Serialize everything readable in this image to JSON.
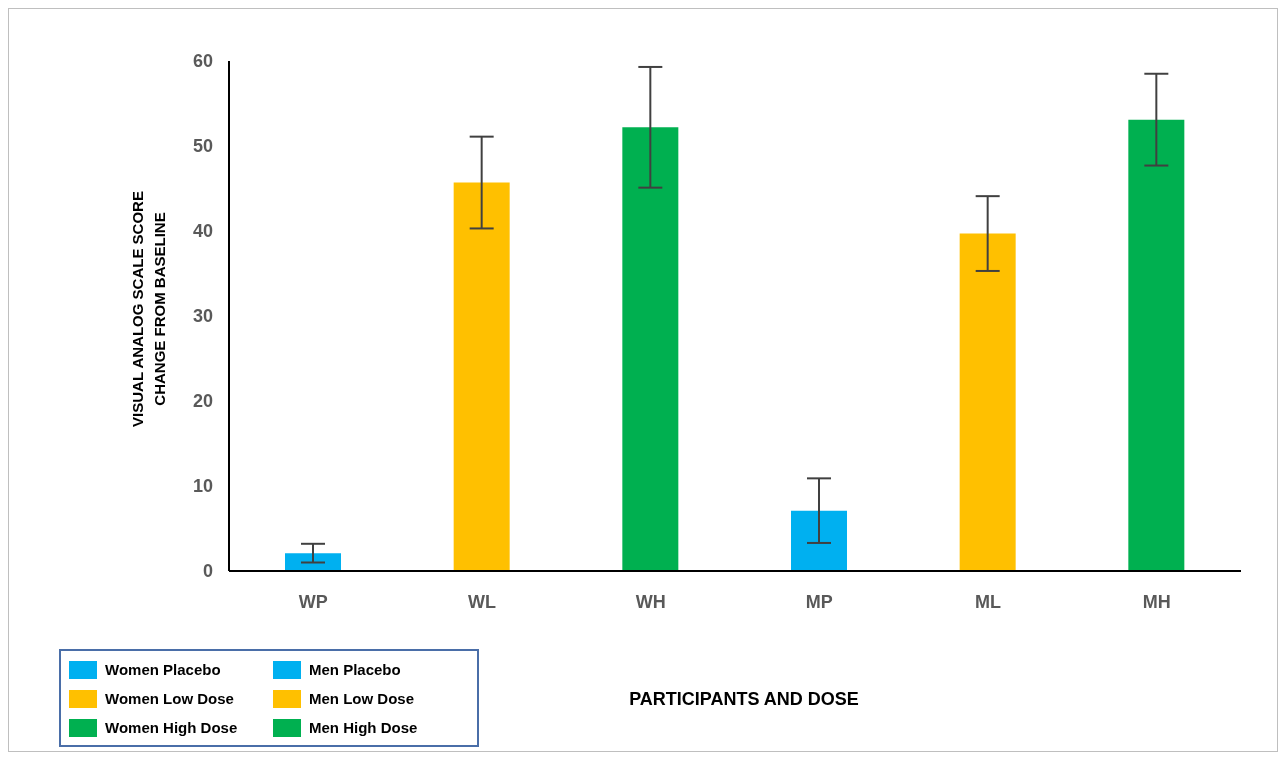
{
  "chart_data": {
    "type": "bar",
    "xlabel": "PARTICIPANTS AND DOSE",
    "ylabel": "VISUAL ANALOG SCALE SCORE\nCHANGE FROM BASELINE",
    "categories": [
      "WP",
      "WL",
      "WH",
      "MP",
      "ML",
      "MH"
    ],
    "series": [
      {
        "name": "Women Placebo",
        "color": "#00b0f0",
        "values": [
          2.1,
          null,
          null,
          null,
          null,
          null
        ],
        "errors": [
          1.1,
          null,
          null,
          null,
          null,
          null
        ]
      },
      {
        "name": "Women Low Dose",
        "color": "#ffc000",
        "values": [
          null,
          45.7,
          null,
          null,
          null,
          null
        ],
        "errors": [
          null,
          5.4,
          null,
          null,
          null,
          null
        ]
      },
      {
        "name": "Women High Dose",
        "color": "#00b050",
        "values": [
          null,
          null,
          52.2,
          null,
          null,
          null
        ],
        "errors": [
          null,
          null,
          7.1,
          null,
          null,
          null
        ]
      },
      {
        "name": "Men Placebo",
        "color": "#00b0f0",
        "values": [
          null,
          null,
          null,
          7.1,
          null,
          null
        ],
        "errors": [
          null,
          null,
          null,
          3.8,
          null,
          null
        ]
      },
      {
        "name": "Men Low Dose",
        "color": "#ffc000",
        "values": [
          null,
          null,
          null,
          null,
          39.7,
          null
        ],
        "errors": [
          null,
          null,
          null,
          null,
          4.4,
          null
        ]
      },
      {
        "name": "Men High Dose",
        "color": "#00b050",
        "values": [
          null,
          null,
          null,
          null,
          null,
          53.1
        ],
        "errors": [
          null,
          null,
          null,
          null,
          null,
          5.4
        ]
      }
    ],
    "ylim": [
      0,
      60
    ],
    "yticks": [
      0,
      10,
      20,
      30,
      40,
      50,
      60
    ],
    "grid": false,
    "legend": "bottom left"
  }
}
